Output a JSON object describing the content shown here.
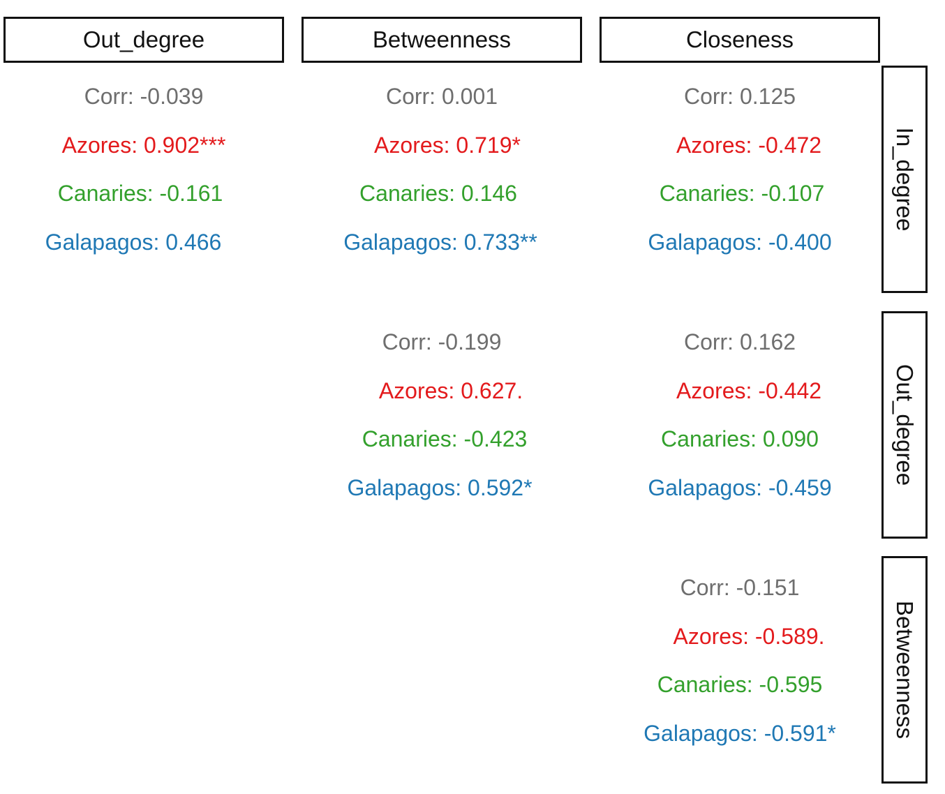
{
  "chart_data": {
    "type": "table",
    "column_headers": [
      "Out_degree",
      "Betweenness",
      "Closeness"
    ],
    "row_headers": [
      "In_degree",
      "Out_degree",
      "Betweenness"
    ],
    "colors": {
      "Corr": "#6e6e6e",
      "Azores": "#e31a1c",
      "Canaries": "#33a02c",
      "Galapagos": "#1f78b4"
    },
    "cells": [
      {
        "row": 0,
        "col": 0,
        "lines": [
          {
            "group": "Corr",
            "text": "Corr: -0.039"
          },
          {
            "group": "Azores",
            "text": "Azores: 0.902***"
          },
          {
            "group": "Canaries",
            "text": "Canaries: -0.161"
          },
          {
            "group": "Galapagos",
            "text": "Galapagos: 0.466"
          }
        ]
      },
      {
        "row": 0,
        "col": 1,
        "lines": [
          {
            "group": "Corr",
            "text": "Corr: 0.001"
          },
          {
            "group": "Azores",
            "text": "Azores: 0.719*"
          },
          {
            "group": "Canaries",
            "text": "Canaries: 0.146"
          },
          {
            "group": "Galapagos",
            "text": "Galapagos: 0.733**"
          }
        ]
      },
      {
        "row": 0,
        "col": 2,
        "lines": [
          {
            "group": "Corr",
            "text": "Corr: 0.125"
          },
          {
            "group": "Azores",
            "text": "Azores: -0.472"
          },
          {
            "group": "Canaries",
            "text": "Canaries: -0.107"
          },
          {
            "group": "Galapagos",
            "text": "Galapagos: -0.400"
          }
        ]
      },
      {
        "row": 1,
        "col": 1,
        "lines": [
          {
            "group": "Corr",
            "text": "Corr: -0.199"
          },
          {
            "group": "Azores",
            "text": "Azores: 0.627."
          },
          {
            "group": "Canaries",
            "text": "Canaries: -0.423"
          },
          {
            "group": "Galapagos",
            "text": "Galapagos: 0.592*"
          }
        ]
      },
      {
        "row": 1,
        "col": 2,
        "lines": [
          {
            "group": "Corr",
            "text": "Corr: 0.162"
          },
          {
            "group": "Azores",
            "text": "Azores: -0.442"
          },
          {
            "group": "Canaries",
            "text": "Canaries: 0.090"
          },
          {
            "group": "Galapagos",
            "text": "Galapagos: -0.459"
          }
        ]
      },
      {
        "row": 2,
        "col": 2,
        "lines": [
          {
            "group": "Corr",
            "text": "Corr: -0.151"
          },
          {
            "group": "Azores",
            "text": "Azores: -0.589."
          },
          {
            "group": "Canaries",
            "text": "Canaries: -0.595"
          },
          {
            "group": "Galapagos",
            "text": "Galapagos: -0.591*"
          }
        ]
      }
    ]
  }
}
